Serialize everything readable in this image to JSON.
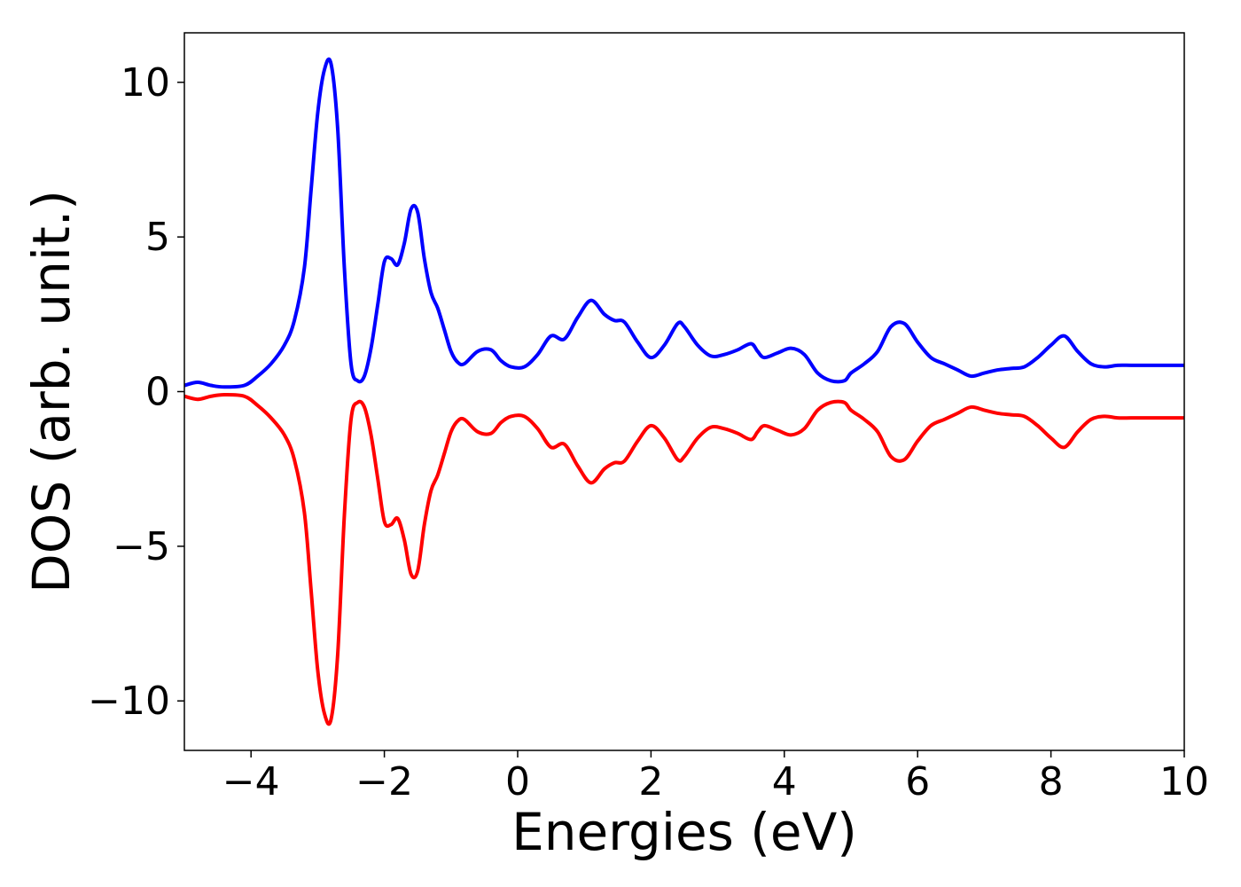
{
  "chart_data": {
    "type": "line",
    "title": "",
    "xlabel": "Energies (eV)",
    "ylabel": "DOS (arb. unit.)",
    "xlim": [
      -5,
      10
    ],
    "ylim": [
      -11.6,
      11.6
    ],
    "grid": false,
    "legend": "none",
    "x_ticks": [
      -4,
      -2,
      0,
      2,
      4,
      6,
      8,
      10
    ],
    "x_tick_labels": [
      "−4",
      "−2",
      "0",
      "2",
      "4",
      "6",
      "8",
      "10"
    ],
    "y_ticks": [
      -10,
      -5,
      0,
      5,
      10
    ],
    "y_tick_labels": [
      "−10",
      "−5",
      "0",
      "5",
      "10"
    ],
    "series": [
      {
        "color": "#0000ff",
        "x": [
          -5.0,
          -4.8,
          -4.6,
          -4.4,
          -4.1,
          -3.9,
          -3.7,
          -3.5,
          -3.35,
          -3.2,
          -3.1,
          -3.0,
          -2.9,
          -2.8,
          -2.7,
          -2.6,
          -2.5,
          -2.4,
          -2.3,
          -2.2,
          -2.1,
          -2.0,
          -1.9,
          -1.8,
          -1.7,
          -1.6,
          -1.5,
          -1.4,
          -1.3,
          -1.2,
          -1.1,
          -1.0,
          -0.9,
          -0.8,
          -0.6,
          -0.4,
          -0.25,
          -0.1,
          0.1,
          0.3,
          0.5,
          0.7,
          0.9,
          1.1,
          1.3,
          1.45,
          1.6,
          1.8,
          2.0,
          2.2,
          2.4,
          2.5,
          2.7,
          2.9,
          3.1,
          3.3,
          3.5,
          3.6,
          3.7,
          3.9,
          4.1,
          4.3,
          4.5,
          4.7,
          4.9,
          5.0,
          5.2,
          5.4,
          5.6,
          5.8,
          6.0,
          6.2,
          6.4,
          6.6,
          6.8,
          7.0,
          7.2,
          7.4,
          7.6,
          7.8,
          8.0,
          8.2,
          8.4,
          8.6,
          8.8,
          9.0,
          9.2,
          9.4,
          9.6,
          9.8,
          10.0
        ],
        "y": [
          0.2,
          0.3,
          0.2,
          0.15,
          0.2,
          0.5,
          0.9,
          1.5,
          2.3,
          4.0,
          6.5,
          9.0,
          10.4,
          10.6,
          8.5,
          4.0,
          0.9,
          0.35,
          0.5,
          1.4,
          2.8,
          4.2,
          4.3,
          4.1,
          4.8,
          5.9,
          5.8,
          4.3,
          3.2,
          2.7,
          2.0,
          1.3,
          0.95,
          0.9,
          1.3,
          1.35,
          1.0,
          0.8,
          0.8,
          1.2,
          1.8,
          1.7,
          2.4,
          2.95,
          2.5,
          2.3,
          2.25,
          1.6,
          1.1,
          1.5,
          2.2,
          2.1,
          1.5,
          1.15,
          1.2,
          1.35,
          1.55,
          1.3,
          1.1,
          1.25,
          1.4,
          1.2,
          0.6,
          0.35,
          0.35,
          0.6,
          0.9,
          1.3,
          2.1,
          2.2,
          1.6,
          1.1,
          0.9,
          0.7,
          0.5,
          0.6,
          0.7,
          0.75,
          0.8,
          1.1,
          1.5,
          1.8,
          1.3,
          0.9,
          0.8,
          0.85,
          0.85,
          0.85,
          0.85,
          0.85,
          0.85
        ],
        "y_override": null
      },
      {
        "color": "#ff0000",
        "x": [
          -5.0,
          -4.8,
          -4.6,
          -4.4,
          -4.1,
          -3.9,
          -3.7,
          -3.5,
          -3.35,
          -3.2,
          -3.1,
          -3.0,
          -2.9,
          -2.8,
          -2.7,
          -2.6,
          -2.5,
          -2.4,
          -2.3,
          -2.2,
          -2.1,
          -2.0,
          -1.9,
          -1.8,
          -1.7,
          -1.6,
          -1.5,
          -1.4,
          -1.3,
          -1.2,
          -1.1,
          -1.0,
          -0.9,
          -0.8,
          -0.6,
          -0.4,
          -0.25,
          -0.1,
          0.1,
          0.3,
          0.5,
          0.7,
          0.9,
          1.1,
          1.3,
          1.45,
          1.6,
          1.8,
          2.0,
          2.2,
          2.4,
          2.5,
          2.7,
          2.9,
          3.1,
          3.3,
          3.5,
          3.6,
          3.7,
          3.9,
          4.1,
          4.3,
          4.5,
          4.7,
          4.9,
          5.0,
          5.2,
          5.4,
          5.6,
          5.8,
          6.0,
          6.2,
          6.4,
          6.6,
          6.8,
          7.0,
          7.2,
          7.4,
          7.6,
          7.8,
          8.0,
          8.2,
          8.4,
          8.6,
          8.8,
          9.0,
          9.2,
          9.4,
          9.6,
          9.8,
          10.0
        ],
        "y": [
          -0.15,
          -0.25,
          -0.15,
          -0.1,
          -0.15,
          -0.45,
          -0.85,
          -1.4,
          -2.2,
          -3.9,
          -6.4,
          -9.0,
          -10.4,
          -10.6,
          -8.5,
          -4.0,
          -0.9,
          -0.35,
          -0.5,
          -1.4,
          -2.8,
          -4.2,
          -4.3,
          -4.1,
          -4.8,
          -5.9,
          -5.8,
          -4.3,
          -3.2,
          -2.7,
          -2.0,
          -1.3,
          -0.95,
          -0.9,
          -1.3,
          -1.35,
          -1.0,
          -0.8,
          -0.8,
          -1.2,
          -1.8,
          -1.7,
          -2.4,
          -2.95,
          -2.5,
          -2.3,
          -2.25,
          -1.6,
          -1.1,
          -1.5,
          -2.2,
          -2.1,
          -1.5,
          -1.15,
          -1.2,
          -1.35,
          -1.55,
          -1.3,
          -1.1,
          -1.25,
          -1.4,
          -1.2,
          -0.6,
          -0.35,
          -0.35,
          -0.6,
          -0.9,
          -1.3,
          -2.1,
          -2.2,
          -1.6,
          -1.1,
          -0.9,
          -0.7,
          -0.5,
          -0.6,
          -0.7,
          -0.75,
          -0.8,
          -1.1,
          -1.5,
          -1.8,
          -1.3,
          -0.9,
          -0.8,
          -0.85,
          -0.85,
          -0.85,
          -0.85,
          -0.85,
          -0.85
        ],
        "y_override": null
      }
    ]
  }
}
